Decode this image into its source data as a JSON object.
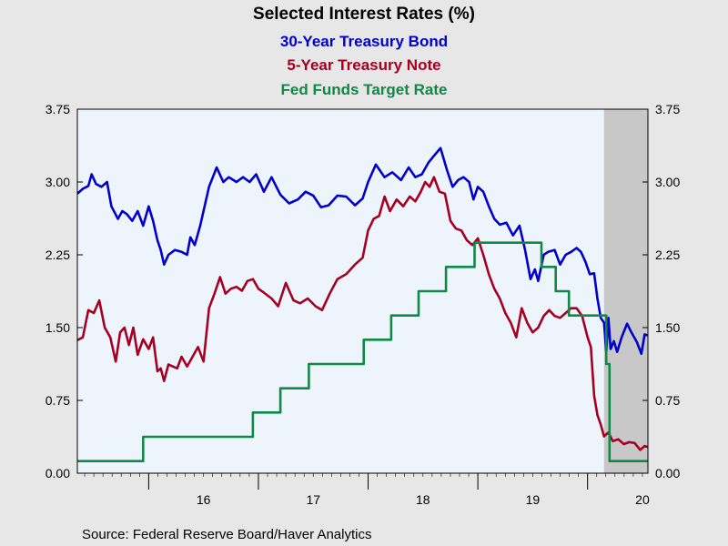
{
  "chart_data": {
    "type": "line",
    "title": "Selected Interest Rates (%)",
    "subtitles": [
      {
        "text": "30-Year Treasury Bond",
        "color": "#0000cc"
      },
      {
        "text": "5-Year Treasury Note",
        "color": "#a50021"
      },
      {
        "text": "Fed Funds Target Rate",
        "color": "#118845"
      }
    ],
    "source": "Source:  Federal Reserve Board/Haver Analytics",
    "xlim": [
      2015.35,
      2020.55
    ],
    "ylim": [
      0,
      3.75
    ],
    "y_ticks": [
      "0.00",
      "0.75",
      "1.50",
      "2.25",
      "3.00",
      "3.75"
    ],
    "x_tick_labels": [
      {
        "label": "16",
        "at": 2016.5
      },
      {
        "label": "17",
        "at": 2017.5
      },
      {
        "label": "18",
        "at": 2018.5
      },
      {
        "label": "19",
        "at": 2019.5
      },
      {
        "label": "20",
        "at": 2020.5
      }
    ],
    "x_year_boundaries": [
      2016,
      2017,
      2018,
      2019,
      2020
    ],
    "recession_shading": {
      "start": 2020.15,
      "end": 2020.55,
      "color": "#c8c8c8"
    },
    "plot_background": "#eef4fc",
    "grid": false,
    "series": [
      {
        "name": "30-Year Treasury Bond",
        "color": "#0000cc",
        "x": [
          2015.35,
          2015.4,
          2015.45,
          2015.48,
          2015.52,
          2015.57,
          2015.62,
          2015.66,
          2015.72,
          2015.76,
          2015.8,
          2015.85,
          2015.9,
          2015.95,
          2016.0,
          2016.04,
          2016.08,
          2016.11,
          2016.14,
          2016.18,
          2016.24,
          2016.3,
          2016.35,
          2016.38,
          2016.42,
          2016.47,
          2016.55,
          2016.62,
          2016.68,
          2016.73,
          2016.8,
          2016.86,
          2016.92,
          2016.98,
          2017.05,
          2017.12,
          2017.2,
          2017.28,
          2017.36,
          2017.43,
          2017.5,
          2017.57,
          2017.64,
          2017.72,
          2017.8,
          2017.88,
          2017.95,
          2018.0,
          2018.07,
          2018.15,
          2018.22,
          2018.3,
          2018.37,
          2018.43,
          2018.49,
          2018.55,
          2018.6,
          2018.66,
          2018.72,
          2018.77,
          2018.82,
          2018.87,
          2018.92,
          2018.96,
          2019.0,
          2019.05,
          2019.1,
          2019.15,
          2019.2,
          2019.26,
          2019.32,
          2019.38,
          2019.43,
          2019.48,
          2019.52,
          2019.55,
          2019.6,
          2019.64,
          2019.7,
          2019.75,
          2019.8,
          2019.85,
          2019.9,
          2019.94,
          2019.98,
          2020.02,
          2020.06,
          2020.09,
          2020.12,
          2020.15,
          2020.17,
          2020.19,
          2020.21,
          2020.24,
          2020.27,
          2020.31,
          2020.36,
          2020.4,
          2020.45,
          2020.49,
          2020.52,
          2020.55
        ],
        "values": [
          2.88,
          2.93,
          2.96,
          3.08,
          2.98,
          2.95,
          3.0,
          2.75,
          2.62,
          2.7,
          2.67,
          2.6,
          2.7,
          2.55,
          2.75,
          2.6,
          2.4,
          2.3,
          2.15,
          2.25,
          2.3,
          2.28,
          2.25,
          2.43,
          2.35,
          2.55,
          2.95,
          3.15,
          3.0,
          3.05,
          3.0,
          3.05,
          3.0,
          3.08,
          2.9,
          3.05,
          2.87,
          2.78,
          2.82,
          2.9,
          2.86,
          2.74,
          2.76,
          2.86,
          2.85,
          2.76,
          2.83,
          3.0,
          3.18,
          3.05,
          3.1,
          3.02,
          3.15,
          3.05,
          3.08,
          3.2,
          3.27,
          3.35,
          3.12,
          2.95,
          3.02,
          3.05,
          3.0,
          2.82,
          2.95,
          2.9,
          2.75,
          2.62,
          2.56,
          2.58,
          2.45,
          2.55,
          2.3,
          2.0,
          2.1,
          1.98,
          2.25,
          2.28,
          2.3,
          2.15,
          2.25,
          2.28,
          2.32,
          2.28,
          2.18,
          2.05,
          2.06,
          1.8,
          1.6,
          1.55,
          1.25,
          1.6,
          1.28,
          1.36,
          1.25,
          1.4,
          1.54,
          1.45,
          1.35,
          1.23,
          1.43,
          1.42
        ]
      },
      {
        "name": "5-Year Treasury Note",
        "color": "#a50021",
        "x": [
          2015.35,
          2015.4,
          2015.45,
          2015.5,
          2015.55,
          2015.6,
          2015.65,
          2015.7,
          2015.74,
          2015.78,
          2015.82,
          2015.86,
          2015.9,
          2015.95,
          2016.0,
          2016.04,
          2016.08,
          2016.11,
          2016.14,
          2016.18,
          2016.22,
          2016.26,
          2016.3,
          2016.35,
          2016.4,
          2016.45,
          2016.5,
          2016.55,
          2016.6,
          2016.65,
          2016.7,
          2016.75,
          2016.8,
          2016.85,
          2016.9,
          2016.95,
          2017.0,
          2017.05,
          2017.12,
          2017.18,
          2017.25,
          2017.32,
          2017.38,
          2017.45,
          2017.52,
          2017.58,
          2017.65,
          2017.72,
          2017.8,
          2017.88,
          2017.95,
          2018.0,
          2018.05,
          2018.1,
          2018.15,
          2018.2,
          2018.26,
          2018.32,
          2018.38,
          2018.43,
          2018.48,
          2018.52,
          2018.56,
          2018.6,
          2018.65,
          2018.7,
          2018.75,
          2018.8,
          2018.85,
          2018.9,
          2018.95,
          2019.0,
          2019.05,
          2019.1,
          2019.15,
          2019.2,
          2019.25,
          2019.3,
          2019.35,
          2019.4,
          2019.45,
          2019.5,
          2019.55,
          2019.6,
          2019.65,
          2019.7,
          2019.75,
          2019.8,
          2019.85,
          2019.9,
          2019.95,
          2020.0,
          2020.03,
          2020.06,
          2020.09,
          2020.12,
          2020.15,
          2020.19,
          2020.23,
          2020.28,
          2020.33,
          2020.38,
          2020.43,
          2020.48,
          2020.52,
          2020.55
        ],
        "values": [
          1.37,
          1.4,
          1.68,
          1.65,
          1.78,
          1.5,
          1.4,
          1.15,
          1.45,
          1.5,
          1.32,
          1.5,
          1.22,
          1.38,
          1.28,
          1.4,
          1.05,
          1.08,
          0.95,
          1.12,
          1.1,
          1.08,
          1.2,
          1.1,
          1.2,
          1.3,
          1.15,
          1.7,
          1.85,
          2.02,
          1.85,
          1.9,
          1.92,
          1.88,
          1.98,
          2.0,
          1.9,
          1.86,
          1.8,
          1.72,
          1.96,
          1.78,
          1.75,
          1.8,
          1.72,
          1.68,
          1.85,
          2.0,
          2.05,
          2.15,
          2.22,
          2.5,
          2.62,
          2.65,
          2.85,
          2.7,
          2.82,
          2.75,
          2.85,
          2.8,
          2.9,
          3.0,
          2.95,
          3.05,
          2.9,
          2.88,
          2.6,
          2.52,
          2.5,
          2.4,
          2.35,
          2.42,
          2.25,
          2.05,
          1.9,
          1.8,
          1.65,
          1.55,
          1.4,
          1.7,
          1.55,
          1.45,
          1.5,
          1.62,
          1.68,
          1.62,
          1.6,
          1.65,
          1.7,
          1.7,
          1.62,
          1.4,
          1.3,
          0.8,
          0.6,
          0.5,
          0.38,
          0.42,
          0.33,
          0.35,
          0.3,
          0.32,
          0.31,
          0.24,
          0.28,
          0.27
        ]
      },
      {
        "name": "Fed Funds Target Rate",
        "color": "#118845",
        "step": true,
        "x": [
          2015.35,
          2015.95,
          2016.95,
          2017.2,
          2017.46,
          2017.96,
          2018.21,
          2018.46,
          2018.71,
          2018.97,
          2019.58,
          2019.71,
          2019.83,
          2020.17,
          2020.2,
          2020.55
        ],
        "values": [
          0.125,
          0.375,
          0.625,
          0.875,
          1.125,
          1.375,
          1.625,
          1.875,
          2.125,
          2.375,
          2.125,
          1.875,
          1.625,
          1.125,
          0.125,
          0.125
        ]
      }
    ]
  }
}
